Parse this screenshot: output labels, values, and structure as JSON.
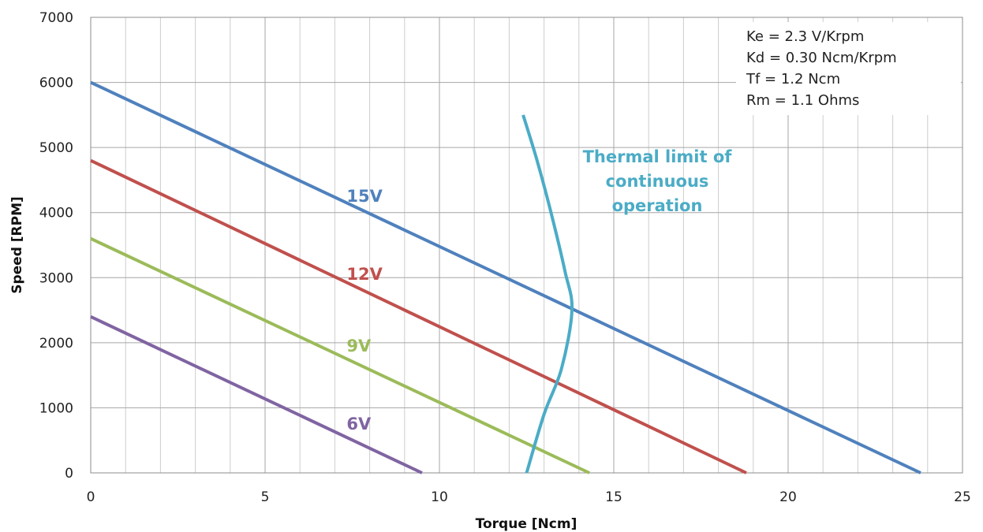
{
  "chart_data": {
    "type": "line",
    "title": "",
    "xlabel": "Torque [Ncm]",
    "ylabel": "Speed [RPM]",
    "xlim": [
      0,
      25
    ],
    "ylim": [
      0,
      7000
    ],
    "x_ticks": [
      0,
      5,
      10,
      15,
      20,
      25
    ],
    "y_ticks": [
      0,
      1000,
      2000,
      3000,
      4000,
      5000,
      6000,
      7000
    ],
    "x_minor_step": 1,
    "grid": true,
    "series": [
      {
        "name": "15V",
        "color": "#4F81BD",
        "points": [
          [
            0,
            6000
          ],
          [
            23.8,
            0
          ]
        ],
        "label_at": [
          7,
          4300
        ]
      },
      {
        "name": "12V",
        "color": "#C0504D",
        "points": [
          [
            0,
            4800
          ],
          [
            18.8,
            0
          ]
        ],
        "label_at": [
          7,
          3100
        ]
      },
      {
        "name": "9V",
        "color": "#9BBB59",
        "points": [
          [
            0,
            3600
          ],
          [
            14.3,
            0
          ]
        ],
        "label_at": [
          7,
          2000
        ]
      },
      {
        "name": "6V",
        "color": "#8064A2",
        "points": [
          [
            0,
            2400
          ],
          [
            9.5,
            0
          ]
        ],
        "label_at": [
          7,
          800
        ]
      }
    ],
    "thermal_limit": {
      "lines": [
        "Thermal limit of",
        "continuous",
        "operation"
      ],
      "color": "#4BACC6",
      "points": [
        [
          12.4,
          5500
        ],
        [
          12.8,
          4800
        ],
        [
          13.2,
          4000
        ],
        [
          13.6,
          3100
        ],
        [
          13.8,
          2500
        ],
        [
          13.5,
          1600
        ],
        [
          13.0,
          900
        ],
        [
          12.5,
          0
        ]
      ]
    },
    "params": [
      "Ke = 2.3 V/Krpm",
      "Kd = 0.30 Ncm/Krpm",
      "Tf = 1.2 Ncm",
      "Rm = 1.1 Ohms"
    ]
  }
}
